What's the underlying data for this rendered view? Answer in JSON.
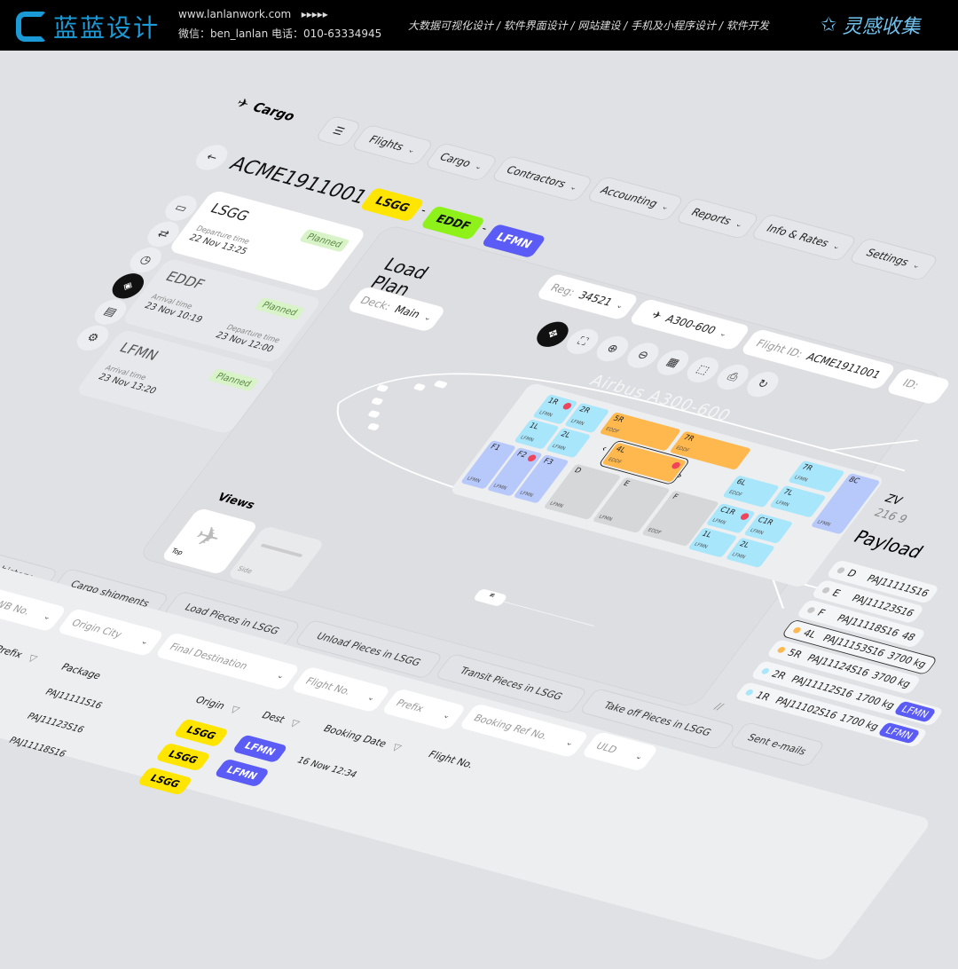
{
  "banner": {
    "logo_text": "蓝蓝设计",
    "site": "www.lanlanwork.com",
    "arrows": "▸▸▸▸▸",
    "contact": "微信：ben_lanlan    电话：010-63334945",
    "services": "大数据可视化设计  /  软件界面设计  /  网站建设  /  手机及小程序设计  /  软件开发",
    "brand": "灵感收集",
    "brand_color": "#6fc3ee",
    "logo_color": "#1a9ad6"
  },
  "app": {
    "logo": "Cargo",
    "nav": [
      "Flights",
      "Cargo",
      "Contractors",
      "Accounting",
      "Reports",
      "Info & Rates",
      "Settings"
    ],
    "flight_title": "ACME1911001",
    "route": [
      {
        "code": "LSGG",
        "color": "#ffe500",
        "text": "#111"
      },
      {
        "code": "EDDF",
        "color": "#8ef21a",
        "text": "#111"
      },
      {
        "code": "LFMN",
        "color": "#5b5cf6",
        "text": "#fff"
      }
    ],
    "route_sep": "-",
    "sidebar_icons": [
      "id-card-icon",
      "transfer-icon",
      "clock-icon",
      "box-icon",
      "document-icon",
      "settings-doc-icon"
    ],
    "stops": [
      {
        "code": "LSGG",
        "status": "Planned",
        "dep_label": "Departure time",
        "dep": "22 Nov 13:25"
      },
      {
        "code": "EDDF",
        "status": "Planned",
        "arr_label": "Arrival time",
        "arr": "23 Nov 10:19",
        "dep_label": "Departure time",
        "dep": "23 Nov 12:00"
      },
      {
        "code": "LFMN",
        "status": "Planned",
        "arr_label": "Arrival time",
        "arr": "23 Nov 13:20"
      }
    ]
  },
  "load_plan": {
    "title": "Load Plan",
    "deck_label": "Deck:",
    "deck_value": "Main",
    "reg_label": "Reg:",
    "reg_value": "34521",
    "aircraft": "A300-600",
    "flight_id_label": "Flight ID:",
    "flight_id": "ACME1911001",
    "id_label": "ID:",
    "tools": [
      "move-icon",
      "fit-icon",
      "zoom-in-icon",
      "zoom-out-icon",
      "manifest-icon",
      "select-area-icon",
      "print-icon",
      "refresh-icon"
    ],
    "aircraft_label": "Airbus A300-600",
    "views_title": "Views",
    "views": [
      "Top",
      "Side"
    ],
    "cells": [
      {
        "label": "1R",
        "dest": "LFMN",
        "type": "blue",
        "alert": true
      },
      {
        "label": "2R",
        "dest": "LFMN",
        "type": "blue"
      },
      {
        "label": "1L",
        "dest": "LFMN",
        "type": "blue"
      },
      {
        "label": "2L",
        "dest": "LFMN",
        "type": "blue"
      },
      {
        "label": "F1",
        "dest": "LFMN",
        "type": "violet"
      },
      {
        "label": "F2",
        "dest": "LFMN",
        "type": "violet",
        "alert": true
      },
      {
        "label": "F3",
        "dest": "LFMN",
        "type": "violet"
      },
      {
        "label": "5R",
        "dest": "EDDF",
        "type": "orange"
      },
      {
        "label": "7R",
        "dest": "EDDF",
        "type": "orange"
      },
      {
        "label": "4L",
        "dest": "EDDF",
        "type": "orange",
        "alert": true,
        "selected": true
      },
      {
        "label": "D",
        "dest": "LFMN",
        "type": "gray"
      },
      {
        "label": "E",
        "dest": "LFMN",
        "type": "gray"
      },
      {
        "label": "F",
        "dest": "EDDF",
        "type": "gray"
      },
      {
        "label": "6L",
        "dest": "EDDF",
        "type": "blue"
      },
      {
        "label": "7R",
        "dest": "LFMN",
        "type": "blue"
      },
      {
        "label": "7L",
        "dest": "LFMN",
        "type": "blue"
      },
      {
        "label": "8C",
        "dest": "LFMN",
        "type": "violet"
      },
      {
        "label": "C1R",
        "dest": "LFMN",
        "type": "blue",
        "alert": true
      },
      {
        "label": "C1R",
        "dest": "LFMN",
        "type": "blue"
      },
      {
        "label": "1L",
        "dest": "LFMN",
        "type": "blue"
      },
      {
        "label": "2L",
        "dest": "LFMN",
        "type": "blue"
      }
    ],
    "colors": {
      "blue": "#a8e6fb",
      "violet": "#b7c8fb",
      "orange": "#ffb84d",
      "gray": "#d6d7d9"
    }
  },
  "payload": {
    "top_code": "ZV",
    "top_sub": "216 9",
    "title": "Payload",
    "rows": [
      {
        "pos": "D",
        "id": "PAJ11111S16",
        "weight": "",
        "dot": "#c8c8c8"
      },
      {
        "pos": "E",
        "id": "PAJ11123S16",
        "weight": "",
        "dot": "#c8c8c8"
      },
      {
        "pos": "F",
        "id": "PAJ11118S16",
        "weight": "48",
        "dot": "#c8c8c8"
      },
      {
        "pos": "4L",
        "id": "PAJ11153S16",
        "weight": "3700 kg",
        "dot": "#ffb84d",
        "selected": true
      },
      {
        "pos": "5R",
        "id": "PAJ11124S16",
        "weight": "3700 kg",
        "dot": "#ffb84d"
      },
      {
        "pos": "2R",
        "id": "PAJ11112S16",
        "weight": "1700 kg",
        "dot": "#a8e6fb",
        "dest": "LFMN"
      },
      {
        "pos": "1R",
        "id": "PAJ11102S16",
        "weight": "1700 kg",
        "dot": "#a8e6fb",
        "dest": "LFMN"
      }
    ]
  },
  "bottom": {
    "tabs": [
      "Offloaded cargo history",
      "Cargo shipments",
      "Load Pieces in LSGG",
      "Unload Pieces in LSGG",
      "Transit Pieces in LSGG",
      "Take off Pieces in LSGG",
      "Sent e-mails"
    ],
    "filters": [
      "AWB No.",
      "Origin City",
      "Final Destination",
      "Flight No.",
      "Prefix",
      "Booking Ref No.",
      "ULD"
    ],
    "columns": [
      "Prefix",
      "Package",
      "Origin",
      "Dest",
      "Booking Date",
      "Flight No."
    ],
    "rows": [
      {
        "package": "PAJ11111S16",
        "origin": "LSGG",
        "dest": "LFMN",
        "date": "16 Now 12:34"
      },
      {
        "package": "PAJ11123S16",
        "origin": "LSGG",
        "dest": "LFMN",
        "date": ""
      },
      {
        "package": "PAJ11118S16",
        "origin": "LSGG",
        "dest": "",
        "date": ""
      }
    ]
  }
}
